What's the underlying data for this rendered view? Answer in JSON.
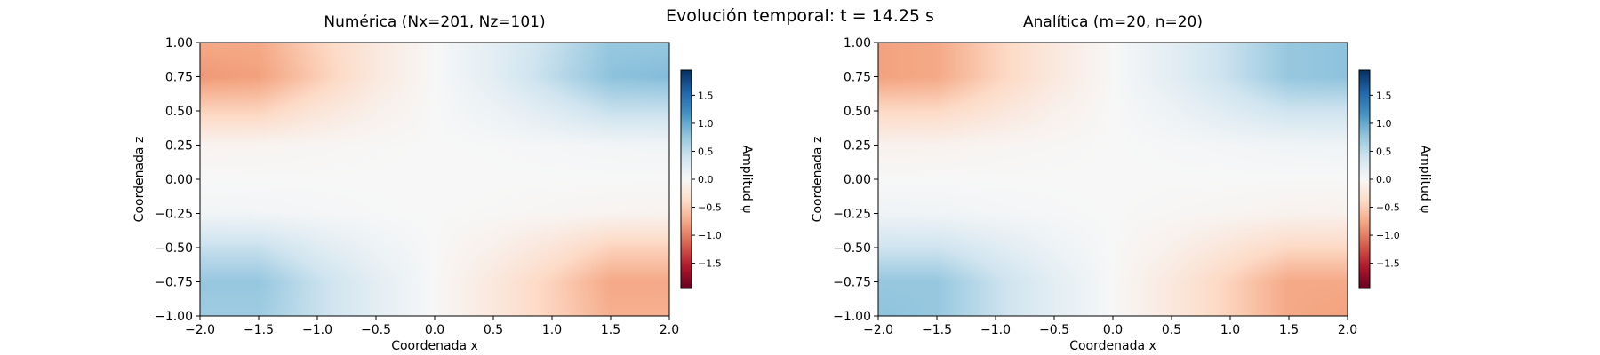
{
  "figure": {
    "suptitle": "Evolución temporal: t = 14.25 s"
  },
  "colorscale": {
    "name": "RdBu",
    "stops": [
      "#67001f",
      "#b2182b",
      "#d6604d",
      "#f4a582",
      "#fddbc7",
      "#f7f7f7",
      "#d1e5f0",
      "#92c5de",
      "#4393c3",
      "#2166ac",
      "#053061"
    ]
  },
  "chart_data": [
    {
      "type": "heatmap",
      "title": "Numérica (Nx=201, Nz=101)",
      "xlabel": "Coordenada x",
      "ylabel": "Coordenada z",
      "xlim": [
        -2.0,
        2.0
      ],
      "ylim": [
        -1.0,
        1.0
      ],
      "xticks": [
        "−2.0",
        "−1.5",
        "−1.0",
        "−0.5",
        "0.0",
        "0.5",
        "1.0",
        "1.5",
        "2.0"
      ],
      "xtick_values": [
        -2.0,
        -1.5,
        -1.0,
        -0.5,
        0.0,
        0.5,
        1.0,
        1.5,
        2.0
      ],
      "yticks": [
        "−1.00",
        "−0.75",
        "−0.50",
        "−0.25",
        "0.00",
        "0.25",
        "0.50",
        "0.75",
        "1.00"
      ],
      "ytick_values": [
        -1.0,
        -0.75,
        -0.5,
        -0.25,
        0.0,
        0.25,
        0.5,
        0.75,
        1.0
      ],
      "colorbar": {
        "label": "Amplitud ψ",
        "vmin": -1.95,
        "vmax": 1.95,
        "ticks": [
          "−1.5",
          "−1.0",
          "−0.5",
          "0.0",
          "0.5",
          "1.0",
          "1.5"
        ],
        "tick_values": [
          -1.5,
          -1.0,
          -0.5,
          0.0,
          0.5,
          1.0,
          1.5
        ]
      },
      "x_samples": [
        -2.0,
        -1.5,
        -1.0,
        -0.5,
        0.0,
        0.5,
        1.0,
        1.5,
        2.0
      ],
      "z_samples": [
        1.0,
        0.75,
        0.5,
        0.25,
        0.0,
        -0.25,
        -0.5,
        -0.75,
        -1.0
      ],
      "values": [
        [
          -0.75,
          -0.75,
          -0.45,
          -0.2,
          0.0,
          0.2,
          0.45,
          0.75,
          0.75
        ],
        [
          -0.85,
          -0.8,
          -0.5,
          -0.2,
          0.0,
          0.2,
          0.5,
          0.8,
          0.85
        ],
        [
          -0.45,
          -0.45,
          -0.25,
          -0.1,
          0.0,
          0.1,
          0.25,
          0.45,
          0.45
        ],
        [
          -0.06,
          -0.05,
          -0.03,
          -0.01,
          0.0,
          0.01,
          0.03,
          0.05,
          0.06
        ],
        [
          0.0,
          0.0,
          0.0,
          0.0,
          0.0,
          0.0,
          0.0,
          0.0,
          0.0
        ],
        [
          0.06,
          0.05,
          0.03,
          0.01,
          0.0,
          -0.01,
          -0.03,
          -0.05,
          -0.06
        ],
        [
          0.45,
          0.45,
          0.25,
          0.1,
          0.0,
          -0.1,
          -0.25,
          -0.45,
          -0.45
        ],
        [
          0.75,
          0.75,
          0.45,
          0.2,
          0.0,
          -0.2,
          -0.45,
          -0.75,
          -0.75
        ],
        [
          0.7,
          0.7,
          0.45,
          0.2,
          0.0,
          -0.2,
          -0.45,
          -0.7,
          -0.7
        ]
      ]
    },
    {
      "type": "heatmap",
      "title": "Analítica (m=20, n=20)",
      "xlabel": "Coordenada x",
      "ylabel": "Coordenada z",
      "xlim": [
        -2.0,
        2.0
      ],
      "ylim": [
        -1.0,
        1.0
      ],
      "xticks": [
        "−2.0",
        "−1.5",
        "−1.0",
        "−0.5",
        "0.0",
        "0.5",
        "1.0",
        "1.5",
        "2.0"
      ],
      "xtick_values": [
        -2.0,
        -1.5,
        -1.0,
        -0.5,
        0.0,
        0.5,
        1.0,
        1.5,
        2.0
      ],
      "yticks": [
        "−1.00",
        "−0.75",
        "−0.50",
        "−0.25",
        "0.00",
        "0.25",
        "0.50",
        "0.75",
        "1.00"
      ],
      "ytick_values": [
        -1.0,
        -0.75,
        -0.5,
        -0.25,
        0.0,
        0.25,
        0.5,
        0.75,
        1.0
      ],
      "colorbar": {
        "label": "Amplitud ψ",
        "vmin": -1.95,
        "vmax": 1.95,
        "ticks": [
          "−1.5",
          "−1.0",
          "−0.5",
          "0.0",
          "0.5",
          "1.0",
          "1.5"
        ],
        "tick_values": [
          -1.5,
          -1.0,
          -0.5,
          0.0,
          0.5,
          1.0,
          1.5
        ]
      },
      "x_samples": [
        -2.0,
        -1.5,
        -1.0,
        -0.5,
        0.0,
        0.5,
        1.0,
        1.5,
        2.0
      ],
      "z_samples": [
        1.0,
        0.75,
        0.5,
        0.25,
        0.0,
        -0.25,
        -0.5,
        -0.75,
        -1.0
      ],
      "values": [
        [
          -0.8,
          -0.75,
          -0.45,
          -0.2,
          0.0,
          0.2,
          0.45,
          0.75,
          0.8
        ],
        [
          -0.8,
          -0.75,
          -0.45,
          -0.2,
          0.0,
          0.2,
          0.45,
          0.75,
          0.8
        ],
        [
          -0.4,
          -0.4,
          -0.25,
          -0.1,
          0.0,
          0.1,
          0.25,
          0.4,
          0.4
        ],
        [
          -0.08,
          -0.07,
          -0.04,
          -0.02,
          0.0,
          0.02,
          0.04,
          0.07,
          0.08
        ],
        [
          0.0,
          0.0,
          0.0,
          0.0,
          0.0,
          0.0,
          0.0,
          0.0,
          0.0
        ],
        [
          0.08,
          0.07,
          0.04,
          0.02,
          0.0,
          -0.02,
          -0.04,
          -0.07,
          -0.08
        ],
        [
          0.4,
          0.4,
          0.25,
          0.1,
          0.0,
          -0.1,
          -0.25,
          -0.4,
          -0.4
        ],
        [
          0.75,
          0.75,
          0.45,
          0.2,
          0.0,
          -0.2,
          -0.45,
          -0.75,
          -0.75
        ],
        [
          0.8,
          0.75,
          0.45,
          0.2,
          0.0,
          -0.2,
          -0.45,
          -0.75,
          -0.8
        ]
      ]
    }
  ]
}
